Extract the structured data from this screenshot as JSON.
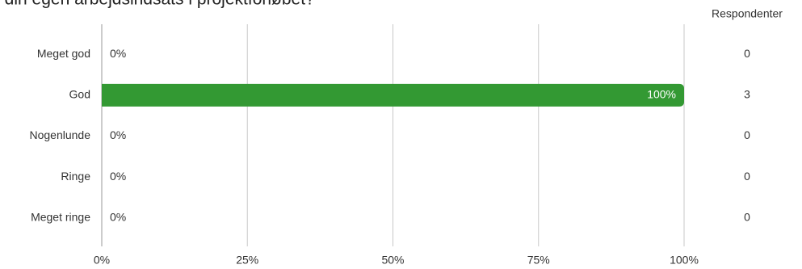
{
  "chart_data": {
    "type": "bar",
    "orientation": "horizontal",
    "title": "t din egen arbejdsindsats i projektforløbet?",
    "categories": [
      "Meget god",
      "God",
      "Nogenlunde",
      "Ringe",
      "Meget ringe"
    ],
    "values": [
      0,
      100,
      0,
      0,
      0
    ],
    "value_labels": [
      "0%",
      "100%",
      "0%",
      "0%",
      "0%"
    ],
    "color": "#339933",
    "xlim": [
      0,
      100
    ],
    "xticks": [
      {
        "value": 0,
        "label": "0%"
      },
      {
        "value": 25,
        "label": "25%"
      },
      {
        "value": 50,
        "label": "50%"
      },
      {
        "value": 75,
        "label": "75%"
      },
      {
        "value": 100,
        "label": "100%"
      }
    ],
    "grid": true,
    "respondents_label": "Respondenter",
    "respondents": [
      0,
      3,
      0,
      0,
      0
    ]
  }
}
